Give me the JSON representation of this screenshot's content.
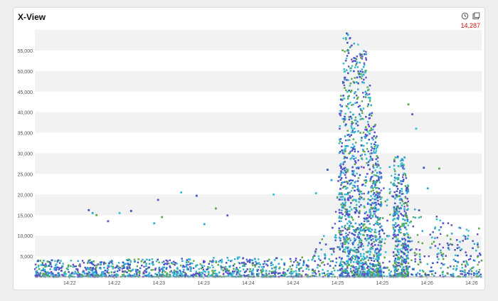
{
  "widget": {
    "title": "X-View",
    "count": "14,287",
    "icons": {
      "history": "history-icon",
      "window": "window-icon"
    },
    "count_color": "#cc1111"
  },
  "chart_data": {
    "type": "scatter",
    "title": "X-View",
    "xlabel": "",
    "ylabel": "",
    "x_ticks": [
      "14:22",
      "14:22",
      "14:23",
      "14:23",
      "14:24",
      "14:24",
      "14:25",
      "14:25",
      "14:26",
      "14:26"
    ],
    "y_ticks": [
      "5,000",
      "10,000",
      "15,000",
      "20,000",
      "25,000",
      "30,000",
      "35,000",
      "40,000",
      "45,000",
      "50,000",
      "55,000"
    ],
    "ylim": [
      0,
      60000
    ],
    "grid": "alternating horizontal bands",
    "colors": [
      "#3a55c8",
      "#2ea7d8",
      "#5aa84a",
      "#6a4fc9",
      "#37c0c9"
    ],
    "approx_point_count": 14287,
    "series": [
      {
        "values_description": "response-time scatter over time",
        "density_profile_minute_offsets_vs_y": [
          {
            "x": 0.0,
            "y_typical_max": 4000
          },
          {
            "x": 3.6,
            "y_typical_max": 5000
          },
          {
            "x": 3.9,
            "y_typical_max": 15000
          },
          {
            "x": 4.0,
            "y_typical_max": 60000
          },
          {
            "x": 4.3,
            "y_typical_max": 55000
          },
          {
            "x": 4.5,
            "y_typical_max": 25000
          },
          {
            "x": 4.75,
            "y_typical_max": 31000
          },
          {
            "x": 4.9,
            "y_typical_max": 17000
          },
          {
            "x": 5.6,
            "y_typical_max": 12000
          }
        ]
      }
    ],
    "outliers": [
      [
        0.7,
        16200
      ],
      [
        0.75,
        15500
      ],
      [
        0.8,
        15000
      ],
      [
        0.95,
        13500
      ],
      [
        1.1,
        15500
      ],
      [
        1.25,
        16000
      ],
      [
        1.55,
        13000
      ],
      [
        1.65,
        14500
      ],
      [
        1.6,
        18700
      ],
      [
        1.9,
        20500
      ],
      [
        2.1,
        19700
      ],
      [
        2.2,
        12800
      ],
      [
        2.35,
        16600
      ],
      [
        2.5,
        14900
      ],
      [
        3.1,
        20000
      ],
      [
        4.7,
        22000
      ],
      [
        4.8,
        29000
      ],
      [
        4.85,
        41900
      ],
      [
        4.9,
        39500
      ],
      [
        4.95,
        36000
      ],
      [
        5.05,
        26500
      ],
      [
        5.1,
        21500
      ],
      [
        5.25,
        26300
      ],
      [
        5.3,
        13000
      ],
      [
        3.65,
        20300
      ],
      [
        3.8,
        26000
      ],
      [
        3.85,
        23500
      ]
    ]
  }
}
